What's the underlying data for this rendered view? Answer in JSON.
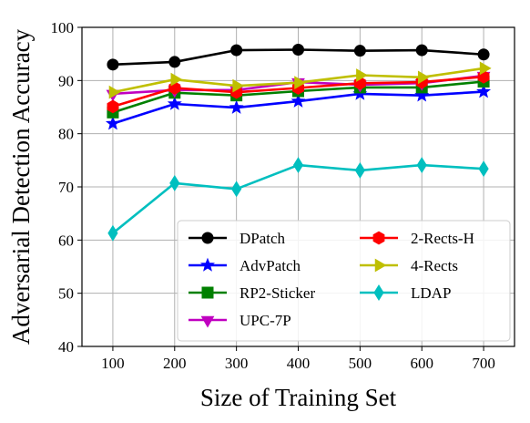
{
  "chart_data": {
    "type": "line",
    "title": "",
    "xlabel": "Size of Training Set",
    "ylabel": "Adversarial Detection Accuracy",
    "x": [
      100,
      200,
      300,
      400,
      500,
      600,
      700
    ],
    "xlim": [
      50,
      750
    ],
    "ylim": [
      40,
      100
    ],
    "xticks": [
      "100",
      "200",
      "300",
      "400",
      "500",
      "600",
      "700"
    ],
    "yticks": [
      "40",
      "50",
      "60",
      "70",
      "80",
      "90",
      "100"
    ],
    "grid": true,
    "legend_position": "lower-right",
    "legend_columns": 2,
    "series": [
      {
        "name": "DPatch",
        "color": "#000000",
        "marker": "circle",
        "values": [
          93.0,
          93.5,
          95.7,
          95.8,
          95.6,
          95.7,
          94.9
        ]
      },
      {
        "name": "AdvPatch",
        "color": "#0000ff",
        "marker": "star",
        "values": [
          81.9,
          85.6,
          84.9,
          86.1,
          87.5,
          87.2,
          87.9
        ]
      },
      {
        "name": "RP2-Sticker",
        "color": "#008000",
        "marker": "square",
        "values": [
          84.0,
          87.7,
          87.2,
          88.0,
          88.7,
          88.7,
          89.8
        ]
      },
      {
        "name": "UPC-7P",
        "color": "#c000c0",
        "marker": "triangle-down",
        "values": [
          87.5,
          88.2,
          88.2,
          89.7,
          89.2,
          89.5,
          90.9
        ]
      },
      {
        "name": "2-Rects-H",
        "color": "#ff0000",
        "marker": "hexagon",
        "values": [
          85.1,
          88.6,
          87.8,
          88.6,
          89.5,
          89.7,
          90.7
        ]
      },
      {
        "name": "4-Rects",
        "color": "#bfbf00",
        "marker": "triangle-right",
        "values": [
          87.8,
          90.2,
          89.0,
          89.6,
          91.0,
          90.6,
          92.3
        ]
      },
      {
        "name": "LDAP",
        "color": "#00bfbf",
        "marker": "diamond",
        "values": [
          61.3,
          70.7,
          69.6,
          74.1,
          73.1,
          74.1,
          73.4
        ]
      }
    ]
  }
}
